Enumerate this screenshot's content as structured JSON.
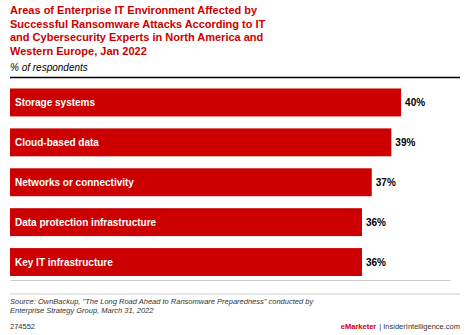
{
  "chart_data": {
    "type": "bar",
    "orientation": "horizontal",
    "title": "Areas of Enterprise IT Environment Affected by\nSuccessful Ransomware Attacks According to IT\nand Cybersecurity Experts in North America and\nWestern Europe, Jan 2022",
    "subtitle": "% of respondents",
    "categories": [
      "Storage systems",
      "Cloud-based data",
      "Networks or connectivity",
      "Data protection infrastructure",
      "Key IT infrastructure"
    ],
    "values": [
      40,
      39,
      37,
      36,
      36
    ],
    "value_labels": [
      "40%",
      "39%",
      "37%",
      "36%",
      "36%"
    ],
    "data_labels": true,
    "color": "#cc0000",
    "xlim": [
      0,
      45
    ],
    "tick_labels": false,
    "grid": false,
    "source": "Source: OwnBackup, \"The Long Road Ahead to Ransomware Preparedness\" conducted by\nEnterprise Strategy Group, March 31, 2022",
    "annotations": [
      "274552",
      "eMarketer",
      "| InsiderIntelligence.com"
    ]
  }
}
